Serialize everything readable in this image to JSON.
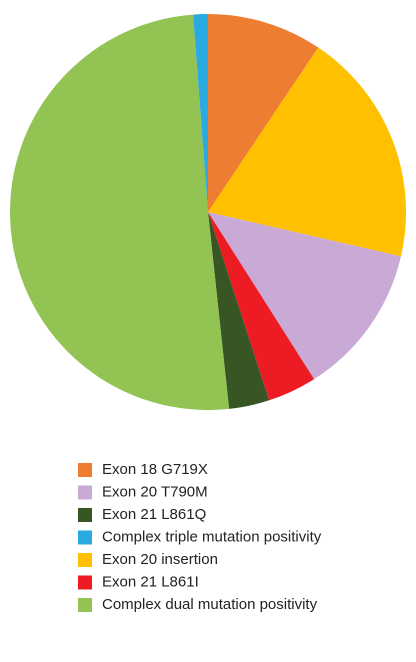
{
  "chart_data": {
    "type": "pie",
    "categories": [
      "Exon 18 G719X",
      "Exon 20 insertion",
      "Exon 20 T790M",
      "Exon 21 L861I",
      "Exon 21 L861Q",
      "Complex dual mutation positivity",
      "Complex triple mutation positivity"
    ],
    "values": [
      9.4,
      19.2,
      12.4,
      4.0,
      3.3,
      50.5,
      1.2
    ],
    "colors": [
      "#ed7d31",
      "#ffc000",
      "#c9aad6",
      "#ed1c24",
      "#375623",
      "#92c353",
      "#29abe2"
    ]
  }
}
